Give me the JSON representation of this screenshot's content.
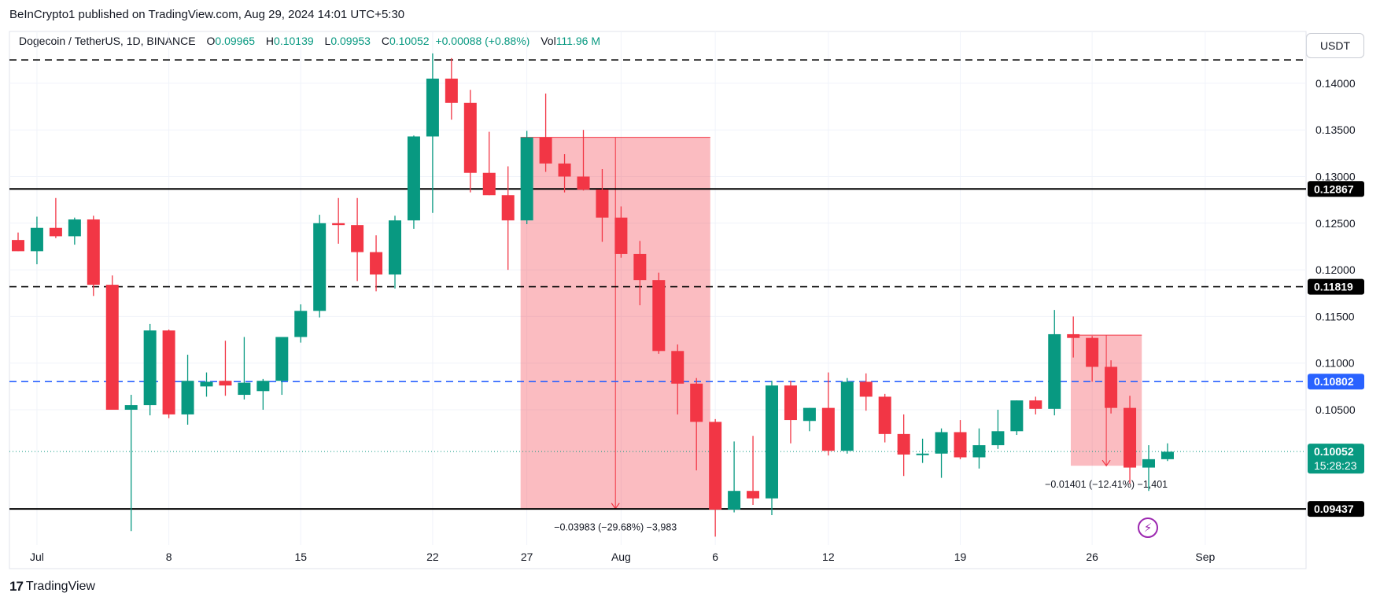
{
  "header": {
    "publisher": "BeInCrypto1 published on TradingView.com, Aug 29, 2024 14:01 UTC+5:30"
  },
  "legend": {
    "symbol": "Dogecoin / TetherUS, 1D, BINANCE",
    "open_label": "O",
    "open": "0.09965",
    "high_label": "H",
    "high": "0.10139",
    "low_label": "L",
    "low": "0.09953",
    "close_label": "C",
    "close": "0.10052",
    "change": "+0.00088 (+0.88%)",
    "vol_label": "Vol",
    "vol": "111.96 M"
  },
  "currency_button": "USDT",
  "brand": {
    "logo_text": "17",
    "name": "TradingView"
  },
  "chart_data": {
    "type": "candlestick",
    "title": "",
    "y_axis": {
      "position": "right",
      "ylim": [
        0.0905,
        0.1437
      ],
      "ticks": [
        "0.14000",
        "0.13500",
        "0.13000",
        "0.12500",
        "0.12000",
        "0.11500",
        "0.11000",
        "0.10500"
      ]
    },
    "x_axis": {
      "labels": [
        {
          "day": 1,
          "label": "Jul"
        },
        {
          "day": 8,
          "label": "8"
        },
        {
          "day": 15,
          "label": "15"
        },
        {
          "day": 22,
          "label": "22"
        },
        {
          "day": 27,
          "label": "27"
        },
        {
          "day": 32,
          "label": "Aug"
        },
        {
          "day": 37,
          "label": "6"
        },
        {
          "day": 43,
          "label": "12"
        },
        {
          "day": 50,
          "label": "19"
        },
        {
          "day": 57,
          "label": "26"
        },
        {
          "day": 63,
          "label": "Sep"
        }
      ]
    },
    "candles": [
      {
        "d": 0,
        "o": 0.1232,
        "h": 0.124,
        "l": 0.122,
        "c": 0.122
      },
      {
        "d": 1,
        "o": 0.122,
        "h": 0.1257,
        "l": 0.1206,
        "c": 0.1245
      },
      {
        "d": 2,
        "o": 0.1245,
        "h": 0.1277,
        "l": 0.1234,
        "c": 0.1236
      },
      {
        "d": 3,
        "o": 0.1236,
        "h": 0.1256,
        "l": 0.1227,
        "c": 0.1254
      },
      {
        "d": 4,
        "o": 0.1254,
        "h": 0.1258,
        "l": 0.1172,
        "c": 0.1184
      },
      {
        "d": 5,
        "o": 0.1184,
        "h": 0.1194,
        "l": 0.105,
        "c": 0.105
      },
      {
        "d": 6,
        "o": 0.105,
        "h": 0.1066,
        "l": 0.092,
        "c": 0.1055
      },
      {
        "d": 7,
        "o": 0.1055,
        "h": 0.1142,
        "l": 0.1044,
        "c": 0.1135
      },
      {
        "d": 8,
        "o": 0.1135,
        "h": 0.1136,
        "l": 0.1041,
        "c": 0.1045
      },
      {
        "d": 9,
        "o": 0.1045,
        "h": 0.1109,
        "l": 0.1034,
        "c": 0.1081
      },
      {
        "d": 10,
        "o": 0.1075,
        "h": 0.109,
        "l": 0.1064,
        "c": 0.108
      },
      {
        "d": 11,
        "o": 0.1081,
        "h": 0.1124,
        "l": 0.1065,
        "c": 0.1076
      },
      {
        "d": 12,
        "o": 0.1066,
        "h": 0.1128,
        "l": 0.1061,
        "c": 0.1079
      },
      {
        "d": 13,
        "o": 0.107,
        "h": 0.1083,
        "l": 0.105,
        "c": 0.1081
      },
      {
        "d": 14,
        "o": 0.1081,
        "h": 0.1128,
        "l": 0.1066,
        "c": 0.1128
      },
      {
        "d": 15,
        "o": 0.1128,
        "h": 0.1163,
        "l": 0.1122,
        "c": 0.1156
      },
      {
        "d": 16,
        "o": 0.1156,
        "h": 0.1259,
        "l": 0.1149,
        "c": 0.125
      },
      {
        "d": 17,
        "o": 0.125,
        "h": 0.1277,
        "l": 0.1228,
        "c": 0.1248
      },
      {
        "d": 18,
        "o": 0.1248,
        "h": 0.1277,
        "l": 0.1188,
        "c": 0.1219
      },
      {
        "d": 19,
        "o": 0.1219,
        "h": 0.1237,
        "l": 0.1177,
        "c": 0.1195
      },
      {
        "d": 20,
        "o": 0.1195,
        "h": 0.1258,
        "l": 0.118,
        "c": 0.1253
      },
      {
        "d": 21,
        "o": 0.1253,
        "h": 0.1344,
        "l": 0.1244,
        "c": 0.1343
      },
      {
        "d": 22,
        "o": 0.1343,
        "h": 0.1432,
        "l": 0.1261,
        "c": 0.1405
      },
      {
        "d": 23,
        "o": 0.1405,
        "h": 0.1427,
        "l": 0.1361,
        "c": 0.1379
      },
      {
        "d": 24,
        "o": 0.1379,
        "h": 0.1393,
        "l": 0.1283,
        "c": 0.1304
      },
      {
        "d": 25,
        "o": 0.1304,
        "h": 0.1348,
        "l": 0.128,
        "c": 0.128
      },
      {
        "d": 26,
        "o": 0.128,
        "h": 0.1311,
        "l": 0.12,
        "c": 0.1253
      },
      {
        "d": 27,
        "o": 0.1253,
        "h": 0.1349,
        "l": 0.1249,
        "c": 0.1342
      },
      {
        "d": 28,
        "o": 0.1342,
        "h": 0.1389,
        "l": 0.1305,
        "c": 0.1314
      },
      {
        "d": 29,
        "o": 0.1314,
        "h": 0.1324,
        "l": 0.1283,
        "c": 0.13
      },
      {
        "d": 30,
        "o": 0.13,
        "h": 0.135,
        "l": 0.1285,
        "c": 0.1286
      },
      {
        "d": 31,
        "o": 0.1286,
        "h": 0.1308,
        "l": 0.123,
        "c": 0.1256
      },
      {
        "d": 32,
        "o": 0.1256,
        "h": 0.1268,
        "l": 0.1213,
        "c": 0.1217
      },
      {
        "d": 33,
        "o": 0.1217,
        "h": 0.1231,
        "l": 0.1162,
        "c": 0.1189
      },
      {
        "d": 34,
        "o": 0.1189,
        "h": 0.1197,
        "l": 0.111,
        "c": 0.1113
      },
      {
        "d": 35,
        "o": 0.1113,
        "h": 0.112,
        "l": 0.1045,
        "c": 0.1078
      },
      {
        "d": 36,
        "o": 0.1078,
        "h": 0.1084,
        "l": 0.0985,
        "c": 0.1037
      },
      {
        "d": 37,
        "o": 0.1037,
        "h": 0.104,
        "l": 0.0914,
        "c": 0.0943
      },
      {
        "d": 38,
        "o": 0.0943,
        "h": 0.1016,
        "l": 0.094,
        "c": 0.0963
      },
      {
        "d": 39,
        "o": 0.0963,
        "h": 0.1022,
        "l": 0.0948,
        "c": 0.0955
      },
      {
        "d": 40,
        "o": 0.0955,
        "h": 0.1081,
        "l": 0.0937,
        "c": 0.1076
      },
      {
        "d": 41,
        "o": 0.1076,
        "h": 0.1081,
        "l": 0.1014,
        "c": 0.1039
      },
      {
        "d": 42,
        "o": 0.1038,
        "h": 0.1052,
        "l": 0.1027,
        "c": 0.1052
      },
      {
        "d": 43,
        "o": 0.1052,
        "h": 0.109,
        "l": 0.1001,
        "c": 0.1006
      },
      {
        "d": 44,
        "o": 0.1006,
        "h": 0.1084,
        "l": 0.1003,
        "c": 0.108
      },
      {
        "d": 45,
        "o": 0.108,
        "h": 0.1089,
        "l": 0.1049,
        "c": 0.1064
      },
      {
        "d": 46,
        "o": 0.1064,
        "h": 0.1067,
        "l": 0.1015,
        "c": 0.1024
      },
      {
        "d": 47,
        "o": 0.1024,
        "h": 0.1045,
        "l": 0.0979,
        "c": 0.1002
      },
      {
        "d": 48,
        "o": 0.1002,
        "h": 0.1019,
        "l": 0.0993,
        "c": 0.1003
      },
      {
        "d": 49,
        "o": 0.1003,
        "h": 0.103,
        "l": 0.0977,
        "c": 0.1026
      },
      {
        "d": 50,
        "o": 0.1026,
        "h": 0.1039,
        "l": 0.0997,
        "c": 0.0999
      },
      {
        "d": 51,
        "o": 0.0999,
        "h": 0.103,
        "l": 0.0987,
        "c": 0.1012
      },
      {
        "d": 52,
        "o": 0.1012,
        "h": 0.105,
        "l": 0.1008,
        "c": 0.1027
      },
      {
        "d": 53,
        "o": 0.1027,
        "h": 0.106,
        "l": 0.1023,
        "c": 0.106
      },
      {
        "d": 54,
        "o": 0.106,
        "h": 0.1064,
        "l": 0.1045,
        "c": 0.1051
      },
      {
        "d": 55,
        "o": 0.1051,
        "h": 0.1157,
        "l": 0.1044,
        "c": 0.1131
      },
      {
        "d": 56,
        "o": 0.1131,
        "h": 0.115,
        "l": 0.1106,
        "c": 0.1127
      },
      {
        "d": 57,
        "o": 0.1127,
        "h": 0.1129,
        "l": 0.108,
        "c": 0.1096
      },
      {
        "d": 58,
        "o": 0.1096,
        "h": 0.1103,
        "l": 0.1046,
        "c": 0.1052
      },
      {
        "d": 59,
        "o": 0.1052,
        "h": 0.1065,
        "l": 0.0971,
        "c": 0.0988
      },
      {
        "d": 60,
        "o": 0.0988,
        "h": 0.1012,
        "l": 0.0963,
        "c": 0.0997
      },
      {
        "d": 61,
        "o": 0.0997,
        "h": 0.1014,
        "l": 0.0995,
        "c": 0.1005
      }
    ],
    "horizontal_levels": [
      {
        "price": 0.1425,
        "style": "dashed",
        "color": "#000000",
        "label": ""
      },
      {
        "price": 0.12867,
        "style": "solid",
        "color": "#000000",
        "label": "0.12867"
      },
      {
        "price": 0.11819,
        "style": "dashed",
        "color": "#000000",
        "label": "0.11819"
      },
      {
        "price": 0.10802,
        "style": "dashed",
        "color": "#2962ff",
        "label": "0.10802"
      },
      {
        "price": 0.09437,
        "style": "solid",
        "color": "#000000",
        "label": "0.09437"
      }
    ],
    "last_price": {
      "price": 0.10052,
      "label": "0.10052",
      "countdown": "15:28:23"
    },
    "measure_boxes": [
      {
        "day_start": 27,
        "day_end": 36.4,
        "top": 0.1342,
        "bottom": 0.0944,
        "label": "−0.03983 (−29.68%) −3,983"
      },
      {
        "day_start": 56.2,
        "day_end": 59.3,
        "top": 0.113,
        "bottom": 0.099,
        "label": "−0.01401 (−12.41%) −1,401"
      }
    ],
    "colors": {
      "up": "#089981",
      "down": "#f23645",
      "box_fill": "#f2364555",
      "box_edge": "#f23645"
    },
    "grid": true
  }
}
